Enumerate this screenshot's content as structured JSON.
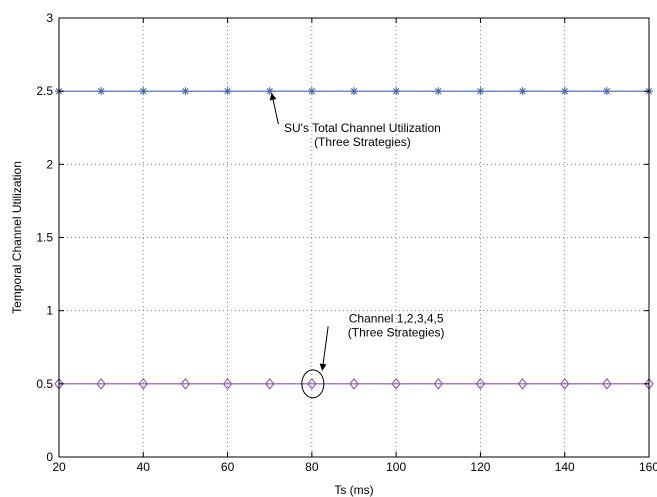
{
  "chart_data": {
    "type": "line",
    "xlabel": "Ts (ms)",
    "ylabel": "Temporal Channel Utilization",
    "xlim": [
      20,
      160
    ],
    "ylim": [
      0,
      3
    ],
    "xticks": [
      20,
      40,
      60,
      80,
      100,
      120,
      140,
      160
    ],
    "yticks": [
      0,
      0.5,
      1,
      1.5,
      2,
      2.5,
      3
    ],
    "x": [
      20,
      30,
      40,
      50,
      60,
      70,
      80,
      90,
      100,
      110,
      120,
      130,
      140,
      150,
      160
    ],
    "grid": true,
    "series": [
      {
        "color": "#4a67b0",
        "marker": "star",
        "values": [
          2.5,
          2.5,
          2.5,
          2.5,
          2.5,
          2.5,
          2.5,
          2.5,
          2.5,
          2.5,
          2.5,
          2.5,
          2.5,
          2.5,
          2.5
        ]
      },
      {
        "color": "#8a5aa8",
        "marker": "diamond",
        "values": [
          0.5,
          0.5,
          0.5,
          0.5,
          0.5,
          0.5,
          0.5,
          0.5,
          0.5,
          0.5,
          0.5,
          0.5,
          0.5,
          0.5,
          0.5
        ]
      }
    ],
    "annotations": [
      {
        "lines": [
          "SU's Total Channel Utilization",
          "(Three Strategies)"
        ],
        "text_at": [
          92,
          2.22
        ],
        "arrow_to": [
          70,
          2.49
        ]
      },
      {
        "lines": [
          "Channel 1,2,3,4,5",
          "(Three Strategies)"
        ],
        "text_at": [
          100,
          0.92
        ],
        "arrow_to": [
          82,
          0.6
        ],
        "circle_at": [
          80,
          0.5
        ]
      }
    ]
  }
}
